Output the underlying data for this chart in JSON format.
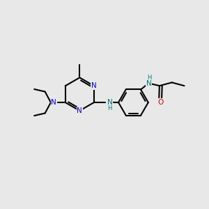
{
  "bg_color": "#e8e8e8",
  "bond_color": "#000000",
  "N_color": "#0000ee",
  "O_color": "#dd0000",
  "NH_color": "#007777",
  "font_size": 7.5,
  "bond_lw": 1.5,
  "figsize": [
    3.0,
    3.0
  ],
  "dpi": 100,
  "xlim": [
    0,
    10
  ],
  "ylim": [
    0,
    10
  ]
}
